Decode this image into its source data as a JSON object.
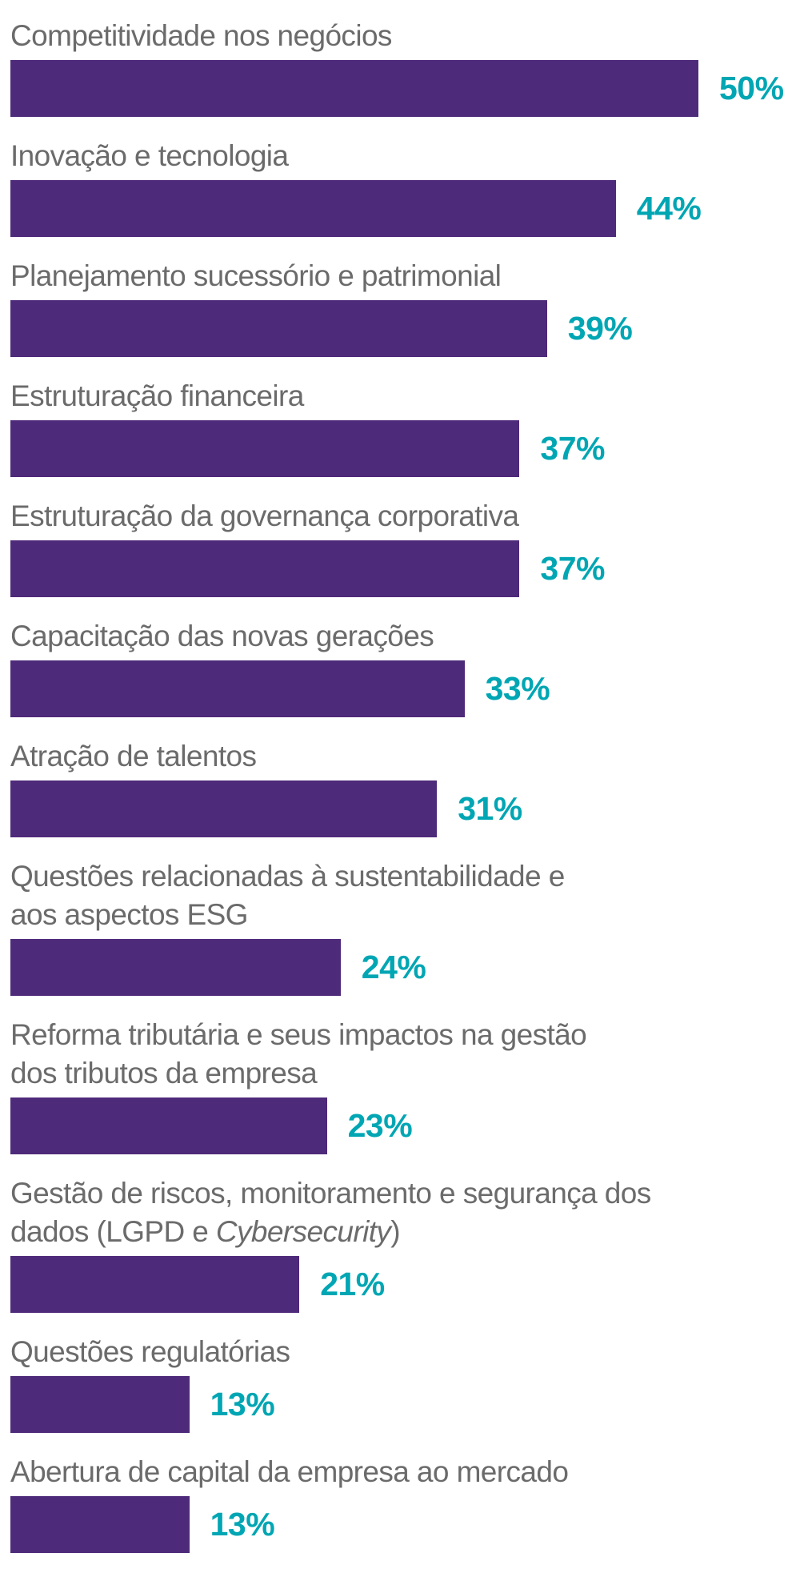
{
  "chart_data": {
    "type": "bar",
    "orientation": "horizontal",
    "bar_color": "#4e2a7a",
    "value_label_color": "#00a6b3",
    "label_color": "#6b6b6b",
    "value_suffix": "%",
    "categories": [
      {
        "segments": [
          {
            "text": "Competitividade nos negócios",
            "italic": false
          }
        ]
      },
      {
        "segments": [
          {
            "text": "Inovação e tecnologia",
            "italic": false
          }
        ]
      },
      {
        "segments": [
          {
            "text": "Planejamento sucessório e patrimonial",
            "italic": false
          }
        ]
      },
      {
        "segments": [
          {
            "text": "Estruturação financeira",
            "italic": false
          }
        ]
      },
      {
        "segments": [
          {
            "text": "Estruturação da governança corporativa",
            "italic": false
          }
        ]
      },
      {
        "segments": [
          {
            "text": "Capacitação das novas gerações",
            "italic": false
          }
        ]
      },
      {
        "segments": [
          {
            "text": "Atração de talentos",
            "italic": false
          }
        ]
      },
      {
        "segments": [
          {
            "text": "Questões relacionadas à sustentabilidade e\naos aspectos ESG",
            "italic": false
          }
        ]
      },
      {
        "segments": [
          {
            "text": "Reforma tributária e seus impactos na gestão\ndos tributos da empresa",
            "italic": false
          }
        ]
      },
      {
        "segments": [
          {
            "text": "Gestão de riscos, monitoramento e segurança dos\ndados (LGPD e ",
            "italic": false
          },
          {
            "text": "Cybersecurity",
            "italic": true
          },
          {
            "text": ")",
            "italic": false
          }
        ]
      },
      {
        "segments": [
          {
            "text": "Questões regulatórias",
            "italic": false
          }
        ]
      },
      {
        "segments": [
          {
            "text": "Abertura de capital da empresa ao mercado",
            "italic": false
          }
        ]
      }
    ],
    "values": [
      50,
      44,
      39,
      37,
      37,
      33,
      31,
      24,
      23,
      21,
      13,
      13
    ],
    "value_labels": [
      "50%",
      "44%",
      "39%",
      "37%",
      "37%",
      "33%",
      "31%",
      "24%",
      "23%",
      "21%",
      "13%",
      "13%"
    ],
    "xlim": [
      0,
      50
    ]
  }
}
